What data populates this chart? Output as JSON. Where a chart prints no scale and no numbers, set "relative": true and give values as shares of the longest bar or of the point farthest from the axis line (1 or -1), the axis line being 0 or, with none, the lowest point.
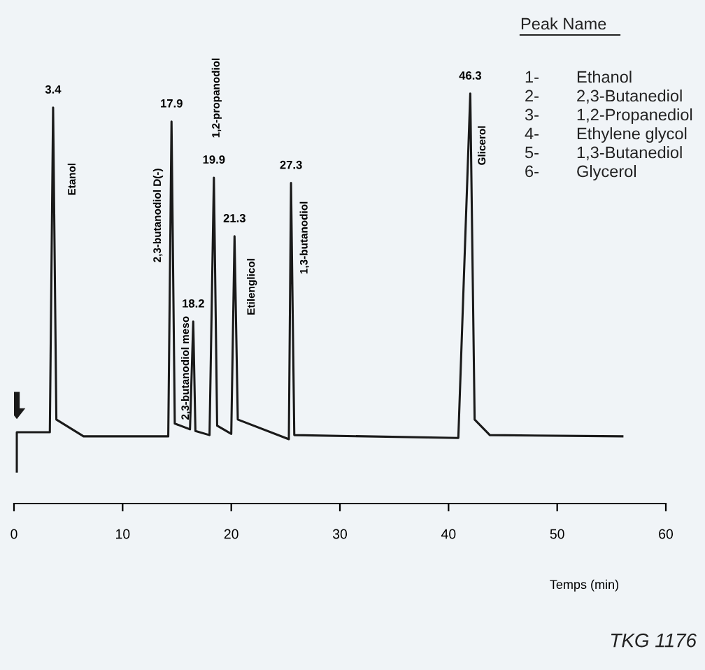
{
  "chart_data": {
    "type": "line",
    "relative": true,
    "xlabel": "Temps (min)",
    "xlim": [
      0,
      60
    ],
    "xticks": [
      0,
      10,
      20,
      30,
      40,
      50,
      60
    ],
    "grid": false,
    "marker": "none",
    "line_style": "solid",
    "series": [
      {
        "color": "#1a1a1a",
        "x": [
          0.26,
          0.26,
          3.3,
          3.6,
          3.9,
          6.4,
          14.2,
          14.5,
          14.8,
          16.2,
          16.5,
          16.7,
          18.0,
          18.4,
          18.7,
          20.0,
          20.3,
          20.6,
          25.3,
          25.5,
          25.8,
          40.9,
          42.0,
          42.4,
          43.8,
          56.0
        ],
        "values": [
          0.078,
          0.174,
          0.174,
          0.966,
          0.205,
          0.164,
          0.164,
          0.932,
          0.195,
          0.181,
          0.444,
          0.177,
          0.167,
          0.795,
          0.19,
          0.17,
          0.652,
          0.205,
          0.157,
          0.782,
          0.167,
          0.16,
          1.0,
          0.205,
          0.167,
          0.164
        ]
      }
    ],
    "annotations": [
      {
        "text": "3.4",
        "x": 3.6,
        "y": 0.966
      },
      {
        "text": "17.9",
        "x": 14.5,
        "y": 0.932
      },
      {
        "text": "18.2",
        "x": 16.5,
        "y": 0.444
      },
      {
        "text": "19.9",
        "x": 18.4,
        "y": 0.795
      },
      {
        "text": "21.3",
        "x": 20.3,
        "y": 0.652
      },
      {
        "text": "27.3",
        "x": 25.5,
        "y": 0.782
      },
      {
        "text": "46.3",
        "x": 42.0,
        "y": 1.0
      },
      "Etanol",
      "2,3-butanodiol D(-)",
      "2,3-butanodiol meso",
      "1,2-propanodiol",
      "Etilenglicol",
      "1,3-butanodiol",
      "Glicerol",
      "Peak Name",
      "1- Ethanol",
      "2- 2,3-Butanediol",
      "3- 1,2-Propanediol",
      "4- Ethylene glycol",
      "5- 1,3-Butanediol",
      "6- Glycerol",
      "TKG 1176"
    ]
  }
}
